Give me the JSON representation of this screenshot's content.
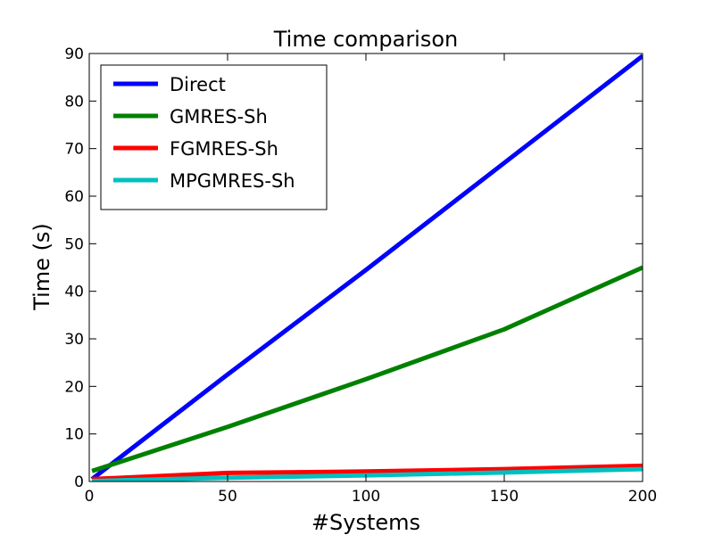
{
  "chart_data": {
    "type": "line",
    "title": "Time comparison",
    "xlabel": "#Systems",
    "ylabel": "Time (s)",
    "xlim": [
      0,
      200
    ],
    "ylim": [
      0,
      90
    ],
    "xticks": [
      0,
      50,
      100,
      150,
      200
    ],
    "yticks": [
      0,
      10,
      20,
      30,
      40,
      50,
      60,
      70,
      80,
      90
    ],
    "grid": false,
    "legend_position": "top-left",
    "x": [
      1,
      50,
      100,
      150,
      200
    ],
    "series": [
      {
        "name": "Direct",
        "color": "#0000ff",
        "values": [
          0.5,
          22.5,
          44.5,
          67,
          89.5
        ]
      },
      {
        "name": "GMRES-Sh",
        "color": "#008000",
        "values": [
          2.2,
          11.5,
          21.5,
          32,
          45
        ]
      },
      {
        "name": "FGMRES-Sh",
        "color": "#ff0000",
        "values": [
          0.5,
          1.8,
          2.1,
          2.6,
          3.3
        ]
      },
      {
        "name": "MPGMRES-Sh",
        "color": "#00bfbf",
        "values": [
          0.1,
          0.8,
          1.3,
          1.9,
          2.6
        ]
      }
    ]
  }
}
